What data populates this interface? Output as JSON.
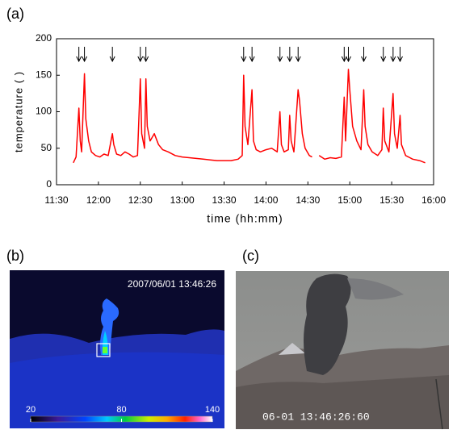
{
  "panel_a": {
    "label": "(a)"
  },
  "chart_data": {
    "type": "line",
    "xlabel": "time (hh:mm)",
    "ylabel": "temperature (   )",
    "color": "#ff0000",
    "x": [
      "11:42",
      "11:44",
      "11:46",
      "11:47",
      "11:48",
      "11:50",
      "11:51",
      "11:53",
      "11:55",
      "11:58",
      "12:01",
      "12:04",
      "12:07",
      "12:10",
      "12:11",
      "12:13",
      "12:16",
      "12:19",
      "12:22",
      "12:25",
      "12:28",
      "12:30",
      "12:31",
      "12:33",
      "12:34",
      "12:35",
      "12:37",
      "12:40",
      "12:43",
      "12:46",
      "12:50",
      "12:55",
      "13:00",
      "13:05",
      "13:10",
      "13:15",
      "13:20",
      "13:25",
      "13:30",
      "13:35",
      "13:40",
      "13:43",
      "13:44",
      "13:45",
      "13:47",
      "13:50",
      "13:51",
      "13:53",
      "13:56",
      "14:00",
      "14:04",
      "14:08",
      "14:10",
      "14:11",
      "14:13",
      "14:16",
      "14:17",
      "14:18",
      "14:20",
      "14:23",
      "14:24",
      "14:26",
      "14:28",
      "14:31",
      "14:33",
      "14:35",
      "14:38",
      "14:42",
      "14:46",
      "14:50",
      "14:54",
      "14:56",
      "14:57",
      "14:59",
      "15:00",
      "15:02",
      "15:05",
      "15:08",
      "15:10",
      "15:11",
      "15:13",
      "15:16",
      "15:20",
      "15:23",
      "15:24",
      "15:25",
      "15:28",
      "15:31",
      "15:32",
      "15:34",
      "15:36",
      "15:37",
      "15:40",
      "15:45",
      "15:50",
      "15:54"
    ],
    "values": [
      30,
      38,
      105,
      60,
      45,
      152,
      90,
      60,
      45,
      40,
      38,
      42,
      40,
      70,
      55,
      42,
      40,
      45,
      42,
      38,
      40,
      145,
      70,
      50,
      145,
      80,
      60,
      70,
      55,
      48,
      45,
      40,
      38,
      37,
      36,
      35,
      34,
      33,
      33,
      33,
      35,
      40,
      150,
      80,
      55,
      130,
      60,
      48,
      45,
      48,
      50,
      45,
      100,
      55,
      45,
      48,
      95,
      60,
      45,
      130,
      115,
      70,
      50,
      40,
      38,
      null,
      40,
      35,
      37,
      36,
      38,
      120,
      60,
      158,
      130,
      80,
      60,
      48,
      130,
      80,
      55,
      45,
      40,
      48,
      105,
      60,
      45,
      125,
      70,
      50,
      95,
      55,
      40,
      35,
      33,
      30
    ],
    "events": [
      "11:46",
      "11:50",
      "12:10",
      "12:30",
      "12:34",
      "13:44",
      "13:50",
      "14:10",
      "14:17",
      "14:23",
      "14:56",
      "14:59",
      "15:10",
      "15:24",
      "15:31",
      "15:36"
    ],
    "xlim": [
      "11:30",
      "16:00"
    ],
    "xticks": [
      "11:30",
      "12:00",
      "12:30",
      "13:00",
      "13:30",
      "14:00",
      "14:30",
      "15:00",
      "15:30",
      "16:00"
    ],
    "ylim": [
      0,
      200
    ],
    "yticks": [
      0,
      50,
      100,
      150,
      200
    ]
  },
  "panel_b": {
    "label": "(b)",
    "timestamp": "2007/06/01  13:46:26",
    "colorbar_labels": [
      20,
      80,
      140
    ]
  },
  "panel_c": {
    "label": "(c)",
    "timestamp": "06-01  13:46:26:60"
  }
}
